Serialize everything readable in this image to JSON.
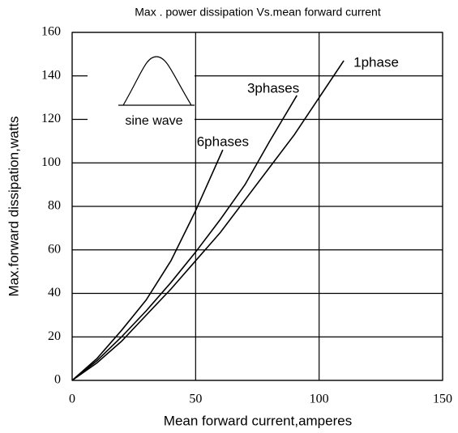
{
  "chart_data": {
    "type": "line",
    "title": "Max . power dissipation Vs.mean forward current",
    "x_label": "Mean forward current,amperes",
    "y_label": "Max.forward dissipation,watts",
    "annotation": "sine wave",
    "xlim": [
      0,
      150
    ],
    "xticks": [
      0,
      50,
      100,
      150
    ],
    "ylim": [
      0,
      160
    ],
    "yticks": [
      0,
      20,
      40,
      60,
      80,
      100,
      120,
      140,
      160
    ],
    "grid": true,
    "series": [
      {
        "name": "1phase",
        "color": "#000000",
        "x": [
          0,
          10,
          20,
          30,
          40,
          50,
          60,
          70,
          80,
          90,
          100,
          110
        ],
        "values": [
          0,
          8,
          18,
          30,
          42,
          55,
          68,
          83,
          98,
          113,
          130,
          147
        ]
      },
      {
        "name": "3phases",
        "color": "#000000",
        "x": [
          0,
          10,
          20,
          30,
          40,
          50,
          60,
          70,
          80,
          91
        ],
        "values": [
          0,
          9,
          20,
          32,
          45,
          59,
          74,
          90,
          110,
          131
        ]
      },
      {
        "name": "6phases",
        "color": "#000000",
        "x": [
          0,
          10,
          20,
          30,
          40,
          50,
          61
        ],
        "values": [
          0,
          10,
          23,
          37,
          55,
          78,
          106
        ]
      }
    ]
  }
}
